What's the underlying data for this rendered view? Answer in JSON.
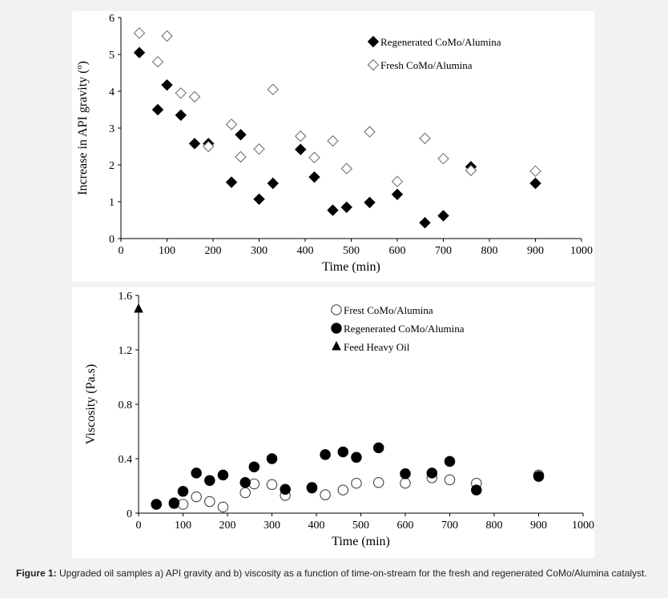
{
  "caption": {
    "label": "Figure 1:",
    "text": "Upgraded oil samples a) API gravity and b) viscosity as a function of time-on-stream for the fresh and regenerated CoMo/Alumina catalyst."
  },
  "chart_data": [
    {
      "type": "scatter",
      "title": "",
      "xlabel": "Time (min)",
      "ylabel": "Increase in API gravity (o)",
      "xlim": [
        0,
        1000
      ],
      "ylim": [
        0,
        6
      ],
      "xticks": [
        0,
        100,
        200,
        300,
        400,
        500,
        600,
        700,
        800,
        900,
        1000
      ],
      "yticks": [
        0,
        1,
        2,
        3,
        4,
        5,
        6
      ],
      "legend_position": "top-right",
      "series": [
        {
          "name": "Regenerated CoMo/Alumina",
          "marker": "diamond-filled",
          "points": [
            [
              40,
              5.05
            ],
            [
              80,
              3.5
            ],
            [
              100,
              4.17
            ],
            [
              130,
              3.35
            ],
            [
              160,
              2.58
            ],
            [
              190,
              2.58
            ],
            [
              240,
              1.53
            ],
            [
              260,
              2.82
            ],
            [
              300,
              1.07
            ],
            [
              330,
              1.5
            ],
            [
              390,
              2.42
            ],
            [
              420,
              1.67
            ],
            [
              460,
              0.77
            ],
            [
              490,
              0.85
            ],
            [
              540,
              0.98
            ],
            [
              600,
              1.2
            ],
            [
              660,
              0.43
            ],
            [
              700,
              0.62
            ],
            [
              760,
              1.95
            ],
            [
              900,
              1.5
            ]
          ]
        },
        {
          "name": "Fresh CoMo/Alumina",
          "marker": "diamond-open",
          "points": [
            [
              40,
              5.58
            ],
            [
              80,
              4.8
            ],
            [
              100,
              5.5
            ],
            [
              130,
              3.95
            ],
            [
              160,
              3.85
            ],
            [
              190,
              2.5
            ],
            [
              240,
              3.1
            ],
            [
              260,
              2.22
            ],
            [
              300,
              2.43
            ],
            [
              330,
              4.05
            ],
            [
              390,
              2.78
            ],
            [
              420,
              2.2
            ],
            [
              460,
              2.65
            ],
            [
              490,
              1.9
            ],
            [
              540,
              2.9
            ],
            [
              600,
              1.55
            ],
            [
              660,
              2.72
            ],
            [
              700,
              2.17
            ],
            [
              760,
              1.85
            ],
            [
              900,
              1.83
            ]
          ]
        }
      ]
    },
    {
      "type": "scatter",
      "title": "",
      "xlabel": "Time (min)",
      "ylabel": "Viscosity (Pa.s)",
      "xlim": [
        0,
        1000
      ],
      "ylim": [
        0,
        1.6
      ],
      "xticks": [
        0,
        100,
        200,
        300,
        400,
        500,
        600,
        700,
        800,
        900,
        1000
      ],
      "yticks": [
        0,
        0.4,
        0.8,
        1.2,
        1.6
      ],
      "ytick_labels": [
        "0",
        "0.4",
        "0.8",
        "1.2",
        "1.6"
      ],
      "legend_position": "top-center",
      "series": [
        {
          "name": "Frest CoMo/Alumina",
          "marker": "circle-open",
          "points": [
            [
              40,
              0.065
            ],
            [
              80,
              0.07
            ],
            [
              100,
              0.065
            ],
            [
              130,
              0.12
            ],
            [
              160,
              0.085
            ],
            [
              190,
              0.045
            ],
            [
              240,
              0.15
            ],
            [
              260,
              0.215
            ],
            [
              300,
              0.21
            ],
            [
              330,
              0.13
            ],
            [
              390,
              0.19
            ],
            [
              420,
              0.135
            ],
            [
              460,
              0.17
            ],
            [
              490,
              0.22
            ],
            [
              540,
              0.225
            ],
            [
              600,
              0.22
            ],
            [
              660,
              0.26
            ],
            [
              700,
              0.245
            ],
            [
              760,
              0.22
            ],
            [
              900,
              0.28
            ]
          ]
        },
        {
          "name": "Regenerated CoMo/Alumina",
          "marker": "circle-filled",
          "points": [
            [
              40,
              0.065
            ],
            [
              80,
              0.075
            ],
            [
              100,
              0.16
            ],
            [
              130,
              0.295
            ],
            [
              160,
              0.24
            ],
            [
              190,
              0.28
            ],
            [
              240,
              0.225
            ],
            [
              260,
              0.34
            ],
            [
              300,
              0.4
            ],
            [
              330,
              0.175
            ],
            [
              390,
              0.185
            ],
            [
              420,
              0.43
            ],
            [
              460,
              0.45
            ],
            [
              490,
              0.41
            ],
            [
              540,
              0.48
            ],
            [
              600,
              0.29
            ],
            [
              660,
              0.295
            ],
            [
              700,
              0.38
            ],
            [
              760,
              0.17
            ],
            [
              900,
              0.27
            ]
          ]
        },
        {
          "name": "Feed Heavy Oil",
          "marker": "triangle-filled",
          "points": [
            [
              0,
              1.5
            ]
          ]
        }
      ]
    }
  ]
}
